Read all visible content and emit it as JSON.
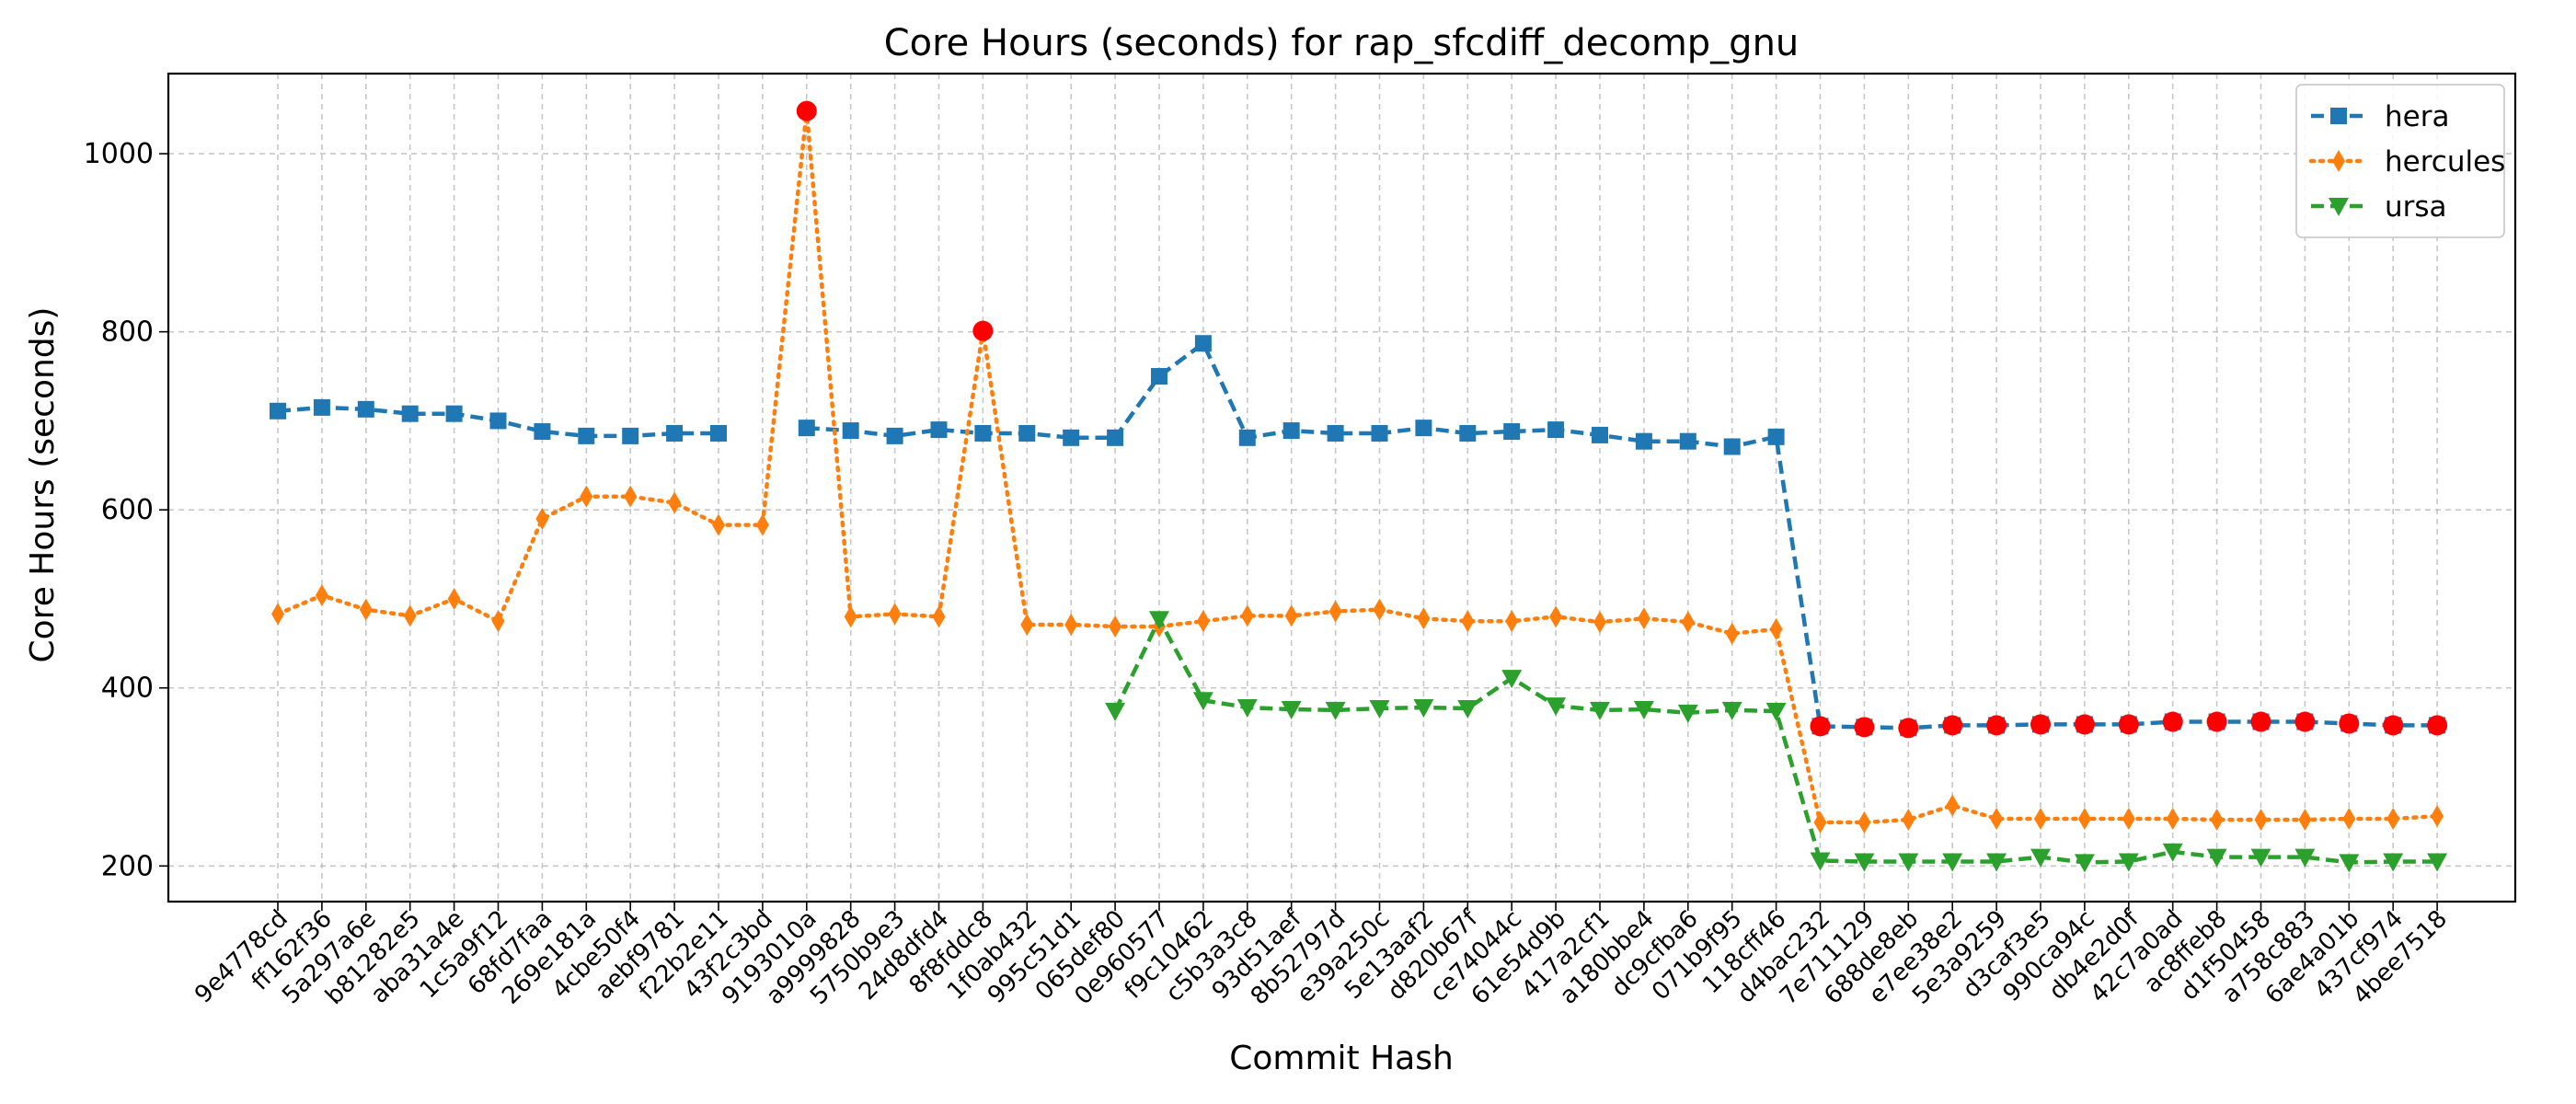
{
  "chart_data": {
    "type": "line",
    "title": "Core Hours (seconds) for rap_sfcdiff_decomp_gnu",
    "xlabel": "Commit Hash",
    "ylabel": "Core Hours (seconds)",
    "ylim": [
      160,
      1090
    ],
    "yticks": [
      200,
      400,
      600,
      800,
      1000
    ],
    "grid": true,
    "legend_position": "top-right",
    "categories": [
      "9e4778cd",
      "ff162f36",
      "5a297a6e",
      "b81282e5",
      "aba31a4e",
      "1c5a9f12",
      "68fd7faa",
      "269e181a",
      "4cbe50f4",
      "aebf9781",
      "f22b2e11",
      "43f2c3bd",
      "9193010a",
      "a9999828",
      "5750b9e3",
      "24d8dfd4",
      "8f8fddc8",
      "1f0ab432",
      "995c51d1",
      "065def80",
      "0e960577",
      "f9c10462",
      "c5b3a3c8",
      "93d51aef",
      "8b52797d",
      "e39a250c",
      "5e13aaf2",
      "d820b67f",
      "ce74044c",
      "61e54d9b",
      "417a2cf1",
      "a180bbe4",
      "dc9cfba6",
      "071b9f95",
      "118cff46",
      "d4bac232",
      "7e711129",
      "688de8eb",
      "e7ee38e2",
      "5e3a9259",
      "d3caf3e5",
      "990ca94c",
      "db4e2d0f",
      "42c7a0ad",
      "ac8ffeb8",
      "d1f50458",
      "a758c883",
      "6ae4a01b",
      "437cf974",
      "4bee7518"
    ],
    "series": [
      {
        "name": "hera",
        "color": "#1f77b4",
        "marker": "square",
        "linestyle": "dashed",
        "values": [
          711,
          715,
          713,
          708,
          708,
          700,
          688,
          683,
          683,
          686,
          686,
          null,
          692,
          689,
          683,
          690,
          686,
          686,
          681,
          681,
          750,
          787,
          681,
          689,
          686,
          686,
          692,
          686,
          688,
          690,
          684,
          677,
          677,
          671,
          682,
          357,
          356,
          355,
          358,
          358,
          359,
          359,
          359,
          362,
          362,
          362,
          362,
          360,
          358,
          358
        ]
      },
      {
        "name": "hercules",
        "color": "#ff7f0e",
        "marker": "thin_diamond",
        "linestyle": "dotted",
        "values": [
          483,
          504,
          488,
          481,
          500,
          475,
          590,
          615,
          615,
          608,
          583,
          583,
          1048,
          480,
          483,
          480,
          801,
          471,
          471,
          469,
          469,
          475,
          481,
          481,
          486,
          488,
          478,
          475,
          475,
          480,
          474,
          478,
          474,
          461,
          466,
          249,
          249,
          252,
          268,
          253,
          253,
          253,
          253,
          253,
          252,
          252,
          252,
          253,
          253,
          256
        ]
      },
      {
        "name": "ursa",
        "color": "#2ca02c",
        "marker": "triangle_down",
        "linestyle": "dashed",
        "values": [
          null,
          null,
          null,
          null,
          null,
          null,
          null,
          null,
          null,
          null,
          null,
          null,
          null,
          null,
          null,
          null,
          null,
          null,
          null,
          374,
          477,
          386,
          378,
          376,
          375,
          377,
          378,
          377,
          411,
          380,
          375,
          376,
          372,
          375,
          374,
          206,
          205,
          205,
          205,
          205,
          210,
          204,
          205,
          216,
          210,
          210,
          210,
          204,
          205,
          205
        ]
      }
    ],
    "highlighted_points": {
      "color": "#ff0000",
      "points": [
        {
          "category": "9193010a",
          "series": "hercules",
          "value": 1048
        },
        {
          "category": "8f8fddc8",
          "series": "hercules",
          "value": 801
        },
        {
          "category": "d4bac232",
          "series": "hera",
          "value": 357
        },
        {
          "category": "7e711129",
          "series": "hera",
          "value": 356
        },
        {
          "category": "688de8eb",
          "series": "hera",
          "value": 355
        },
        {
          "category": "e7ee38e2",
          "series": "hera",
          "value": 358
        },
        {
          "category": "5e3a9259",
          "series": "hera",
          "value": 358
        },
        {
          "category": "d3caf3e5",
          "series": "hera",
          "value": 359
        },
        {
          "category": "990ca94c",
          "series": "hera",
          "value": 359
        },
        {
          "category": "db4e2d0f",
          "series": "hera",
          "value": 359
        },
        {
          "category": "42c7a0ad",
          "series": "hera",
          "value": 362
        },
        {
          "category": "ac8ffeb8",
          "series": "hera",
          "value": 362
        },
        {
          "category": "d1f50458",
          "series": "hera",
          "value": 362
        },
        {
          "category": "a758c883",
          "series": "hera",
          "value": 362
        },
        {
          "category": "6ae4a01b",
          "series": "hera",
          "value": 360
        },
        {
          "category": "437cf974",
          "series": "hera",
          "value": 358
        },
        {
          "category": "4bee7518",
          "series": "hera",
          "value": 358
        }
      ]
    }
  }
}
